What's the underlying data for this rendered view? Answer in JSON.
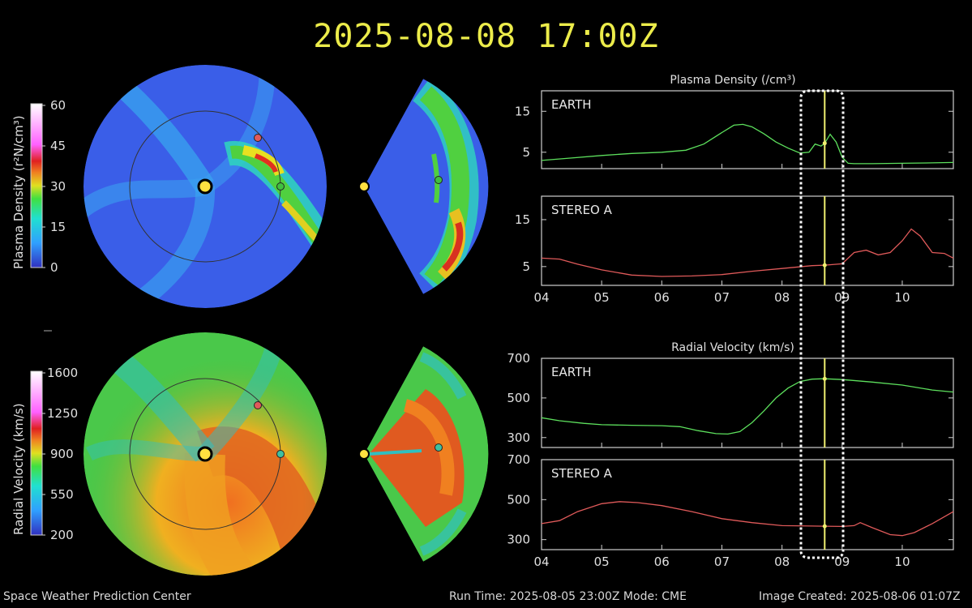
{
  "header": {
    "title": "2025-08-08 17:00Z"
  },
  "footer": {
    "left": "Space Weather Prediction Center",
    "run_time": "Run Time: 2025-08-05 23:00Z  Mode: CME",
    "created": "Image Created: 2025-08-06 01:07Z"
  },
  "colors": {
    "title": "#ecec4a",
    "earth_series": "#5de05d",
    "stereo_series": "#e05a5a",
    "marker": "#f0f070",
    "frame": "#cfcfcf",
    "sun": "#ffe040"
  },
  "colorbars": {
    "density": {
      "label": "Plasma Density (r²N/cm³)",
      "ticks": [
        "60",
        "45",
        "30",
        "15",
        "0"
      ]
    },
    "velocity": {
      "label": "Radial Velocity (km/s)",
      "ticks": [
        "1600",
        "1250",
        "900",
        "550",
        "200"
      ]
    }
  },
  "maps": {
    "icons": [
      "sun-icon",
      "earth-marker-icon",
      "stereo-a-marker-icon"
    ]
  },
  "chart_data": [
    {
      "type": "line",
      "title": "Plasma Density (/cm³)",
      "panel_label": "EARTH",
      "x_ticks": [
        "04",
        "05",
        "06",
        "07",
        "08",
        "09",
        "10"
      ],
      "xlim": [
        4,
        10.85
      ],
      "ylim": [
        1,
        20
      ],
      "y_ticks": [
        5,
        15
      ],
      "current_time": 8.71,
      "series": [
        {
          "name": "EARTH",
          "x": [
            4.0,
            4.5,
            5.0,
            5.5,
            6.0,
            6.4,
            6.7,
            7.0,
            7.2,
            7.35,
            7.5,
            7.7,
            7.9,
            8.1,
            8.3,
            8.45,
            8.55,
            8.65,
            8.71,
            8.8,
            8.9,
            9.0,
            9.1,
            9.2,
            9.5,
            10.0,
            10.5,
            10.85
          ],
          "y": [
            3,
            3.6,
            4.2,
            4.7,
            5.0,
            5.5,
            7.0,
            9.8,
            11.6,
            11.8,
            11.2,
            9.5,
            7.5,
            6.0,
            4.8,
            5.0,
            7.0,
            6.5,
            7.2,
            9.4,
            7.5,
            3.8,
            2.3,
            2.2,
            2.2,
            2.3,
            2.4,
            2.5
          ]
        }
      ]
    },
    {
      "type": "line",
      "panel_label": "STEREO A",
      "x_ticks": [
        "04",
        "05",
        "06",
        "07",
        "08",
        "09",
        "10"
      ],
      "xlim": [
        4,
        10.85
      ],
      "ylim": [
        1,
        20
      ],
      "y_ticks": [
        5,
        15
      ],
      "current_time": 8.71,
      "series": [
        {
          "name": "STEREO A",
          "x": [
            4.0,
            4.3,
            4.6,
            5.0,
            5.5,
            6.0,
            6.5,
            7.0,
            7.5,
            8.0,
            8.5,
            8.71,
            9.0,
            9.2,
            9.4,
            9.6,
            9.8,
            10.0,
            10.15,
            10.3,
            10.5,
            10.7,
            10.85
          ],
          "y": [
            6.8,
            6.6,
            5.5,
            4.3,
            3.2,
            2.9,
            3.0,
            3.3,
            4.0,
            4.6,
            5.2,
            5.3,
            5.6,
            8.0,
            8.5,
            7.5,
            8.0,
            10.5,
            13.0,
            11.5,
            8.0,
            7.8,
            6.8
          ]
        }
      ]
    },
    {
      "type": "line",
      "title": "Radial Velocity (km/s)",
      "panel_label": "EARTH",
      "x_ticks": [
        "04",
        "05",
        "06",
        "07",
        "08",
        "09",
        "10"
      ],
      "xlim": [
        4,
        10.85
      ],
      "ylim": [
        250,
        700
      ],
      "y_ticks": [
        300,
        500,
        700
      ],
      "current_time": 8.71,
      "series": [
        {
          "name": "EARTH",
          "x": [
            4.0,
            4.3,
            4.7,
            5.0,
            5.5,
            6.0,
            6.3,
            6.6,
            6.9,
            7.1,
            7.3,
            7.5,
            7.7,
            7.9,
            8.1,
            8.3,
            8.5,
            8.7,
            9.0,
            9.5,
            10.0,
            10.5,
            10.85
          ],
          "y": [
            400,
            385,
            372,
            365,
            362,
            360,
            355,
            335,
            320,
            318,
            330,
            375,
            435,
            500,
            550,
            583,
            595,
            597,
            593,
            580,
            565,
            540,
            530
          ]
        }
      ]
    },
    {
      "type": "line",
      "panel_label": "STEREO A",
      "x_ticks": [
        "04",
        "05",
        "06",
        "07",
        "08",
        "09",
        "10"
      ],
      "xlim": [
        4,
        10.85
      ],
      "ylim": [
        250,
        700
      ],
      "y_ticks": [
        300,
        500,
        700
      ],
      "current_time": 8.71,
      "series": [
        {
          "name": "STEREO A",
          "x": [
            4.0,
            4.3,
            4.6,
            5.0,
            5.3,
            5.6,
            6.0,
            6.5,
            7.0,
            7.5,
            8.0,
            8.5,
            8.71,
            9.0,
            9.2,
            9.3,
            9.5,
            9.8,
            10.0,
            10.2,
            10.5,
            10.85
          ],
          "y": [
            380,
            395,
            440,
            480,
            490,
            485,
            470,
            440,
            405,
            385,
            370,
            368,
            367,
            366,
            370,
            385,
            360,
            325,
            320,
            335,
            380,
            440
          ]
        }
      ]
    }
  ]
}
